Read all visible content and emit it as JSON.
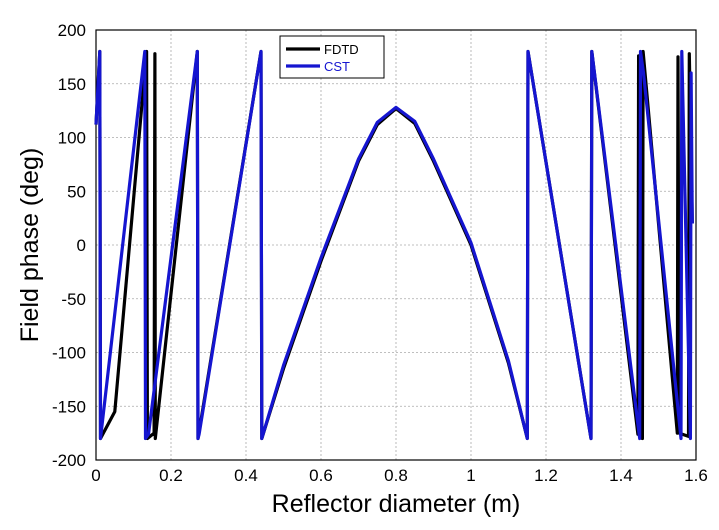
{
  "chart_data": {
    "type": "line",
    "title": "",
    "xlabel": "Reflector diameter (m)",
    "ylabel": "Field phase (deg)",
    "xlim": [
      0,
      1.6
    ],
    "ylim": [
      -200,
      200
    ],
    "x_ticks": [
      "0",
      "0.2",
      "0.4",
      "0.6",
      "0.8",
      "1",
      "1.2",
      "1.4",
      "1.6"
    ],
    "y_ticks": [
      "200",
      "150",
      "100",
      "50",
      "0",
      "-50",
      "-100",
      "-150",
      "-200"
    ],
    "grid": true,
    "legend_position": "top-center",
    "series": [
      {
        "name": "FDTD",
        "color": "#000000",
        "points": [
          [
            0.0,
            112
          ],
          [
            0.01,
            180
          ],
          [
            0.012,
            -180
          ],
          [
            0.05,
            -155
          ],
          [
            0.135,
            180
          ],
          [
            0.137,
            -180
          ],
          [
            0.155,
            -175
          ],
          [
            0.157,
            178
          ],
          [
            0.158,
            -180
          ],
          [
            0.27,
            180
          ],
          [
            0.272,
            -180
          ],
          [
            0.44,
            180
          ],
          [
            0.442,
            -180
          ],
          [
            0.5,
            -115
          ],
          [
            0.6,
            -15
          ],
          [
            0.7,
            78
          ],
          [
            0.75,
            112
          ],
          [
            0.8,
            127
          ],
          [
            0.85,
            113
          ],
          [
            0.9,
            78
          ],
          [
            1.0,
            0
          ],
          [
            1.1,
            -110
          ],
          [
            1.15,
            -180
          ],
          [
            1.152,
            180
          ],
          [
            1.32,
            -180
          ],
          [
            1.322,
            180
          ],
          [
            1.445,
            -176
          ],
          [
            1.447,
            176
          ],
          [
            1.455,
            150
          ],
          [
            1.457,
            -180
          ],
          [
            1.459,
            180
          ],
          [
            1.55,
            -175
          ],
          [
            1.552,
            175
          ],
          [
            1.555,
            -175
          ],
          [
            1.58,
            -178
          ],
          [
            1.582,
            178
          ],
          [
            1.59,
            20
          ]
        ]
      },
      {
        "name": "CST",
        "color": "#1515d0",
        "points": [
          [
            0.0,
            112
          ],
          [
            0.01,
            180
          ],
          [
            0.012,
            -180
          ],
          [
            0.13,
            180
          ],
          [
            0.132,
            -180
          ],
          [
            0.14,
            -176
          ],
          [
            0.27,
            180
          ],
          [
            0.272,
            -180
          ],
          [
            0.275,
            -176
          ],
          [
            0.44,
            180
          ],
          [
            0.442,
            -180
          ],
          [
            0.5,
            -112
          ],
          [
            0.6,
            -12
          ],
          [
            0.7,
            80
          ],
          [
            0.75,
            114
          ],
          [
            0.8,
            128
          ],
          [
            0.85,
            115
          ],
          [
            0.9,
            80
          ],
          [
            1.0,
            2
          ],
          [
            1.1,
            -108
          ],
          [
            1.15,
            -180
          ],
          [
            1.152,
            180
          ],
          [
            1.32,
            -180
          ],
          [
            1.322,
            180
          ],
          [
            1.45,
            -180
          ],
          [
            1.452,
            180
          ],
          [
            1.46,
            160
          ],
          [
            1.56,
            -180
          ],
          [
            1.562,
            180
          ],
          [
            1.585,
            -180
          ],
          [
            1.587,
            160
          ],
          [
            1.59,
            20
          ]
        ]
      }
    ]
  }
}
